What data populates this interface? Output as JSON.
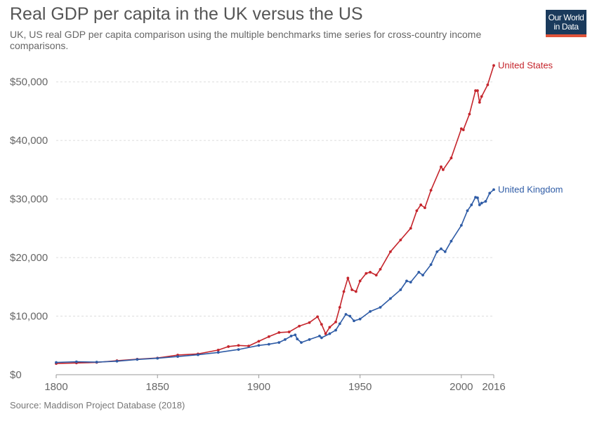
{
  "header": {
    "title": "Real GDP per capita in the UK versus the US",
    "subtitle": "UK, US real GDP per capita comparison using the multiple benchmarks time series for cross-country income comparisons.",
    "logo_line1": "Our World",
    "logo_line2": "in Data"
  },
  "footer": {
    "source": "Source: Maddison Project Database (2018)"
  },
  "colors": {
    "us": "#c5252c",
    "uk": "#2f5ca6",
    "grid": "#dddddd",
    "axis": "#999999"
  },
  "chart_data": {
    "type": "line",
    "title": "Real GDP per capita in the UK versus the US",
    "xlim": [
      1800,
      2016
    ],
    "ylim": [
      0,
      52000
    ],
    "x_ticks": [
      1800,
      1850,
      1900,
      1950,
      2000,
      2016
    ],
    "x_tick_labels": [
      "1800",
      "1850",
      "1900",
      "1950",
      "2000",
      "2016"
    ],
    "y_ticks": [
      0,
      10000,
      20000,
      30000,
      40000,
      50000
    ],
    "y_tick_labels": [
      "$0",
      "$10,000",
      "$20,000",
      "$30,000",
      "$40,000",
      "$50,000"
    ],
    "grid": true,
    "markers": true,
    "series": [
      {
        "name": "United States",
        "color": "#c5252c",
        "points": [
          [
            1800,
            1900
          ],
          [
            1810,
            2000
          ],
          [
            1820,
            2100
          ],
          [
            1830,
            2400
          ],
          [
            1840,
            2650
          ],
          [
            1850,
            2850
          ],
          [
            1860,
            3350
          ],
          [
            1870,
            3550
          ],
          [
            1880,
            4200
          ],
          [
            1885,
            4800
          ],
          [
            1890,
            5000
          ],
          [
            1895,
            4900
          ],
          [
            1900,
            5700
          ],
          [
            1905,
            6500
          ],
          [
            1910,
            7200
          ],
          [
            1915,
            7300
          ],
          [
            1920,
            8300
          ],
          [
            1925,
            8900
          ],
          [
            1929,
            9900
          ],
          [
            1931,
            8600
          ],
          [
            1933,
            7000
          ],
          [
            1935,
            8100
          ],
          [
            1938,
            9000
          ],
          [
            1940,
            11500
          ],
          [
            1942,
            14200
          ],
          [
            1944,
            16500
          ],
          [
            1946,
            14500
          ],
          [
            1948,
            14200
          ],
          [
            1950,
            16000
          ],
          [
            1953,
            17300
          ],
          [
            1955,
            17500
          ],
          [
            1958,
            17000
          ],
          [
            1960,
            18000
          ],
          [
            1965,
            21000
          ],
          [
            1970,
            23000
          ],
          [
            1975,
            25000
          ],
          [
            1978,
            28000
          ],
          [
            1980,
            29000
          ],
          [
            1982,
            28500
          ],
          [
            1985,
            31500
          ],
          [
            1990,
            35500
          ],
          [
            1991,
            35000
          ],
          [
            1995,
            37000
          ],
          [
            2000,
            42000
          ],
          [
            2001,
            41800
          ],
          [
            2004,
            44500
          ],
          [
            2007,
            48500
          ],
          [
            2008,
            48500
          ],
          [
            2009,
            46500
          ],
          [
            2010,
            47500
          ],
          [
            2013,
            49500
          ],
          [
            2016,
            52800
          ]
        ]
      },
      {
        "name": "United Kingdom",
        "color": "#2f5ca6",
        "points": [
          [
            1800,
            2100
          ],
          [
            1810,
            2200
          ],
          [
            1820,
            2150
          ],
          [
            1830,
            2300
          ],
          [
            1840,
            2600
          ],
          [
            1850,
            2800
          ],
          [
            1860,
            3100
          ],
          [
            1870,
            3400
          ],
          [
            1880,
            3800
          ],
          [
            1890,
            4300
          ],
          [
            1900,
            5000
          ],
          [
            1905,
            5200
          ],
          [
            1910,
            5500
          ],
          [
            1913,
            6000
          ],
          [
            1916,
            6600
          ],
          [
            1918,
            6800
          ],
          [
            1919,
            6100
          ],
          [
            1921,
            5500
          ],
          [
            1925,
            6000
          ],
          [
            1930,
            6600
          ],
          [
            1931,
            6300
          ],
          [
            1935,
            7000
          ],
          [
            1938,
            7600
          ],
          [
            1940,
            8700
          ],
          [
            1943,
            10300
          ],
          [
            1945,
            10000
          ],
          [
            1947,
            9200
          ],
          [
            1950,
            9500
          ],
          [
            1955,
            10800
          ],
          [
            1960,
            11500
          ],
          [
            1965,
            13000
          ],
          [
            1970,
            14500
          ],
          [
            1973,
            16000
          ],
          [
            1975,
            15800
          ],
          [
            1979,
            17500
          ],
          [
            1981,
            17000
          ],
          [
            1985,
            18800
          ],
          [
            1988,
            21000
          ],
          [
            1990,
            21500
          ],
          [
            1992,
            21000
          ],
          [
            1995,
            22800
          ],
          [
            2000,
            25500
          ],
          [
            2003,
            28000
          ],
          [
            2005,
            29000
          ],
          [
            2007,
            30300
          ],
          [
            2008,
            30200
          ],
          [
            2009,
            29000
          ],
          [
            2010,
            29300
          ],
          [
            2012,
            29600
          ],
          [
            2014,
            31000
          ],
          [
            2016,
            31600
          ]
        ]
      }
    ]
  }
}
